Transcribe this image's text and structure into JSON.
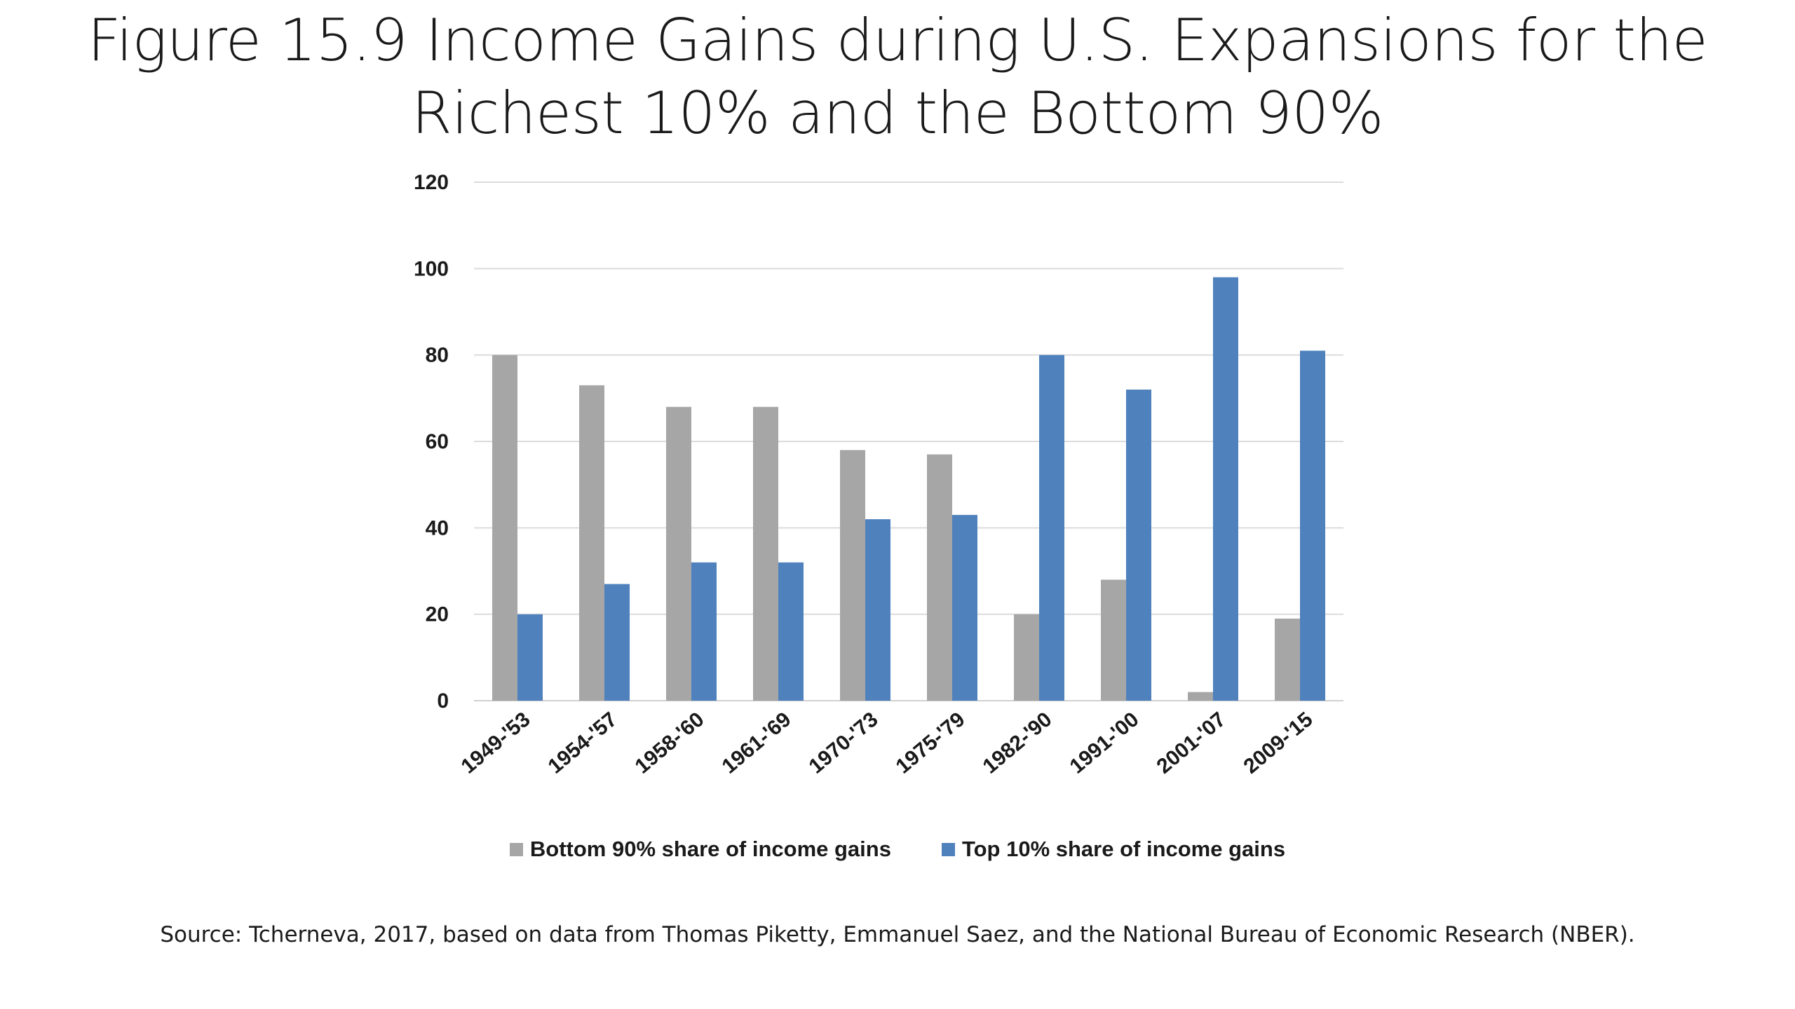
{
  "slide": {
    "title_line1": "Figure 15.9 Income Gains during U.S. Expansions for the",
    "title_line2": "Richest 10% and the Bottom 90%",
    "source": "Source: Tcherneva, 2017, based on data from Thomas Piketty, Emmanuel Saez, and the National Bureau of Economic Research (NBER)."
  },
  "chart_data": {
    "type": "bar",
    "title": "",
    "xlabel": "",
    "ylabel": "",
    "ylim": [
      0,
      120
    ],
    "yticks": [
      0,
      20,
      40,
      60,
      80,
      100,
      120
    ],
    "grid": true,
    "legend_position": "bottom",
    "categories": [
      "1949-'53",
      "1954-'57",
      "1958-'60",
      "1961-'69",
      "1970-'73",
      "1975-'79",
      "1982-'90",
      "1991-'00",
      "2001-'07",
      "2009-'15"
    ],
    "series": [
      {
        "name": "Bottom 90% share of income gains",
        "color": "#a6a6a6",
        "values": [
          80,
          73,
          68,
          68,
          58,
          57,
          20,
          28,
          2,
          19
        ]
      },
      {
        "name": "Top 10% share of income gains",
        "color": "#4f81bd",
        "values": [
          20,
          27,
          32,
          32,
          42,
          43,
          80,
          72,
          98,
          81
        ]
      }
    ]
  }
}
